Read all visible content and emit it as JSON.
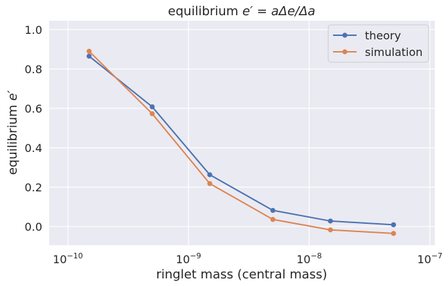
{
  "chart_data": {
    "type": "line",
    "title_plain": "equilibrium ",
    "title_math": "e′ = aΔe/Δa",
    "xlabel": "ringlet mass    (central mass)",
    "ylabel_plain": "equilibrium ",
    "ylabel_math": "e′",
    "x_scale": "log",
    "xlim": [
      7e-11,
      1.1e-07
    ],
    "ylim": [
      -0.095,
      1.045
    ],
    "grid": true,
    "legend_position": "upper right",
    "x_ticks": [
      {
        "value": 1e-10,
        "base": "10",
        "exp": "−10"
      },
      {
        "value": 1e-09,
        "base": "10",
        "exp": "−9"
      },
      {
        "value": 1e-08,
        "base": "10",
        "exp": "−8"
      },
      {
        "value": 1e-07,
        "base": "10",
        "exp": "−7"
      }
    ],
    "y_ticks": [
      {
        "value": 0.0,
        "label": "0.0"
      },
      {
        "value": 0.2,
        "label": "0.2"
      },
      {
        "value": 0.4,
        "label": "0.4"
      },
      {
        "value": 0.6,
        "label": "0.6"
      },
      {
        "value": 0.8,
        "label": "0.8"
      },
      {
        "value": 1.0,
        "label": "1.0"
      }
    ],
    "x": [
      1.5e-10,
      5e-10,
      1.5e-09,
      5e-09,
      1.5e-08,
      5e-08
    ],
    "series": [
      {
        "name": "theory",
        "color": "#4c72b0",
        "values": [
          0.865,
          0.608,
          0.263,
          0.082,
          0.028,
          0.009
        ]
      },
      {
        "name": "simulation",
        "color": "#dd8452",
        "values": [
          0.89,
          0.573,
          0.218,
          0.036,
          -0.017,
          -0.035
        ]
      }
    ],
    "background_color": "#eaeaf2",
    "grid_color": "#ffffff"
  }
}
